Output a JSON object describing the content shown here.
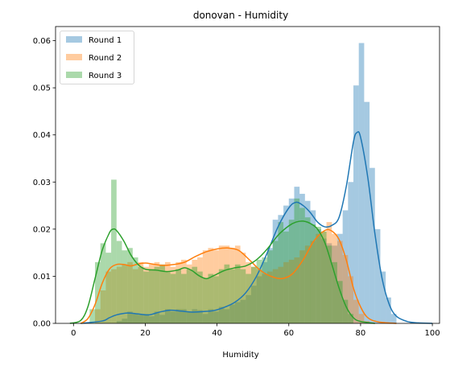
{
  "chart_data": {
    "type": "bar",
    "title": "donovan - Humidity",
    "xlabel": "Humidity",
    "ylabel": "",
    "xlim": [
      -5,
      102
    ],
    "ylim": [
      0,
      0.063
    ],
    "xticks": [
      0,
      20,
      40,
      60,
      80,
      100
    ],
    "yticks": [
      0.0,
      0.01,
      0.02,
      0.03,
      0.04,
      0.05,
      0.06
    ],
    "xtick_labels": [
      "0",
      "20",
      "40",
      "60",
      "80",
      "100"
    ],
    "ytick_labels": [
      "0.00",
      "0.01",
      "0.02",
      "0.03",
      "0.04",
      "0.05",
      "0.06"
    ],
    "legend_position": "upper-left",
    "bin_width": 1.5,
    "series": [
      {
        "name": "Round 1",
        "color": "#1f77b4",
        "bar_opacity": 0.4,
        "histogram": [
          [
            12,
            0.0005
          ],
          [
            13.5,
            0.001
          ],
          [
            15,
            0.0025
          ],
          [
            16.5,
            0.002
          ],
          [
            18,
            0.0018
          ],
          [
            19.5,
            0.002
          ],
          [
            21,
            0.0015
          ],
          [
            22.5,
            0.0025
          ],
          [
            24,
            0.0018
          ],
          [
            25.5,
            0.003
          ],
          [
            27,
            0.0025
          ],
          [
            28.5,
            0.003
          ],
          [
            30,
            0.003
          ],
          [
            31.5,
            0.0025
          ],
          [
            33,
            0.003
          ],
          [
            34.5,
            0.0028
          ],
          [
            36,
            0.002
          ],
          [
            37.5,
            0.003
          ],
          [
            39,
            0.0025
          ],
          [
            40.5,
            0.0035
          ],
          [
            42,
            0.003
          ],
          [
            43.5,
            0.004
          ],
          [
            45,
            0.0045
          ],
          [
            46.5,
            0.005
          ],
          [
            48,
            0.006
          ],
          [
            49.5,
            0.008
          ],
          [
            51,
            0.01
          ],
          [
            52.5,
            0.013
          ],
          [
            54,
            0.016
          ],
          [
            55.5,
            0.022
          ],
          [
            57,
            0.023
          ],
          [
            58.5,
            0.025
          ],
          [
            60,
            0.0265
          ],
          [
            61.5,
            0.029
          ],
          [
            63,
            0.0275
          ],
          [
            64.5,
            0.026
          ],
          [
            66,
            0.024
          ],
          [
            67.5,
            0.02
          ],
          [
            69,
            0.018
          ],
          [
            70.5,
            0.017
          ],
          [
            72,
            0.0165
          ],
          [
            73.5,
            0.019
          ],
          [
            75,
            0.024
          ],
          [
            76.5,
            0.03
          ],
          [
            78,
            0.0505
          ],
          [
            79.5,
            0.0595
          ],
          [
            81,
            0.047
          ],
          [
            82.5,
            0.033
          ],
          [
            84,
            0.02
          ],
          [
            85.5,
            0.011
          ],
          [
            87,
            0.0055
          ],
          [
            88.5,
            0.002
          ]
        ],
        "kde": [
          [
            2,
            0
          ],
          [
            8,
            0.0005
          ],
          [
            10,
            0.0012
          ],
          [
            12,
            0.0018
          ],
          [
            15,
            0.0022
          ],
          [
            18,
            0.002
          ],
          [
            21,
            0.0018
          ],
          [
            24,
            0.0024
          ],
          [
            27,
            0.0028
          ],
          [
            30,
            0.0026
          ],
          [
            33,
            0.0024
          ],
          [
            36,
            0.0025
          ],
          [
            39,
            0.0027
          ],
          [
            42,
            0.0034
          ],
          [
            45,
            0.0045
          ],
          [
            48,
            0.0065
          ],
          [
            51,
            0.01
          ],
          [
            54,
            0.015
          ],
          [
            57,
            0.0205
          ],
          [
            60,
            0.0245
          ],
          [
            62,
            0.0257
          ],
          [
            64,
            0.025
          ],
          [
            66,
            0.0235
          ],
          [
            68,
            0.0215
          ],
          [
            70,
            0.0205
          ],
          [
            72,
            0.0208
          ],
          [
            74,
            0.0225
          ],
          [
            76,
            0.029
          ],
          [
            78,
            0.0385
          ],
          [
            79,
            0.0405
          ],
          [
            80,
            0.0395
          ],
          [
            82,
            0.031
          ],
          [
            84,
            0.019
          ],
          [
            86,
            0.0095
          ],
          [
            88,
            0.004
          ],
          [
            90,
            0.0015
          ],
          [
            93,
            0.0004
          ],
          [
            96,
            0.0001
          ],
          [
            100,
            0
          ]
        ]
      },
      {
        "name": "Round 2",
        "color": "#ff7f0e",
        "bar_opacity": 0.4,
        "histogram": [
          [
            6,
            0.003
          ],
          [
            7.5,
            0.007
          ],
          [
            9,
            0.011
          ],
          [
            10.5,
            0.0115
          ],
          [
            12,
            0.012
          ],
          [
            13.5,
            0.0125
          ],
          [
            15,
            0.013
          ],
          [
            16.5,
            0.0115
          ],
          [
            18,
            0.013
          ],
          [
            19.5,
            0.012
          ],
          [
            21,
            0.0125
          ],
          [
            22.5,
            0.013
          ],
          [
            24,
            0.0125
          ],
          [
            25.5,
            0.013
          ],
          [
            27,
            0.012
          ],
          [
            28.5,
            0.013
          ],
          [
            30,
            0.0135
          ],
          [
            31.5,
            0.0125
          ],
          [
            33,
            0.0135
          ],
          [
            34.5,
            0.014
          ],
          [
            36,
            0.0155
          ],
          [
            37.5,
            0.016
          ],
          [
            39,
            0.0155
          ],
          [
            40.5,
            0.0165
          ],
          [
            42,
            0.0165
          ],
          [
            43.5,
            0.016
          ],
          [
            45,
            0.0165
          ],
          [
            46.5,
            0.015
          ],
          [
            48,
            0.013
          ],
          [
            49.5,
            0.012
          ],
          [
            51,
            0.0115
          ],
          [
            52.5,
            0.0105
          ],
          [
            54,
            0.011
          ],
          [
            55.5,
            0.0115
          ],
          [
            57,
            0.012
          ],
          [
            58.5,
            0.013
          ],
          [
            60,
            0.0135
          ],
          [
            61.5,
            0.014
          ],
          [
            63,
            0.0155
          ],
          [
            64.5,
            0.0165
          ],
          [
            66,
            0.0175
          ],
          [
            67.5,
            0.019
          ],
          [
            69,
            0.0195
          ],
          [
            70.5,
            0.0215
          ],
          [
            72,
            0.019
          ],
          [
            73.5,
            0.0175
          ],
          [
            75,
            0.0145
          ],
          [
            76.5,
            0.01
          ],
          [
            78,
            0.005
          ],
          [
            79.5,
            0.002
          ],
          [
            81,
            0.0005
          ]
        ],
        "kde": [
          [
            2,
            0
          ],
          [
            4,
            0.001
          ],
          [
            6,
            0.004
          ],
          [
            8,
            0.0085
          ],
          [
            10,
            0.0115
          ],
          [
            12,
            0.0125
          ],
          [
            14,
            0.0125
          ],
          [
            16,
            0.0122
          ],
          [
            18,
            0.0126
          ],
          [
            20,
            0.0128
          ],
          [
            22,
            0.0126
          ],
          [
            25,
            0.0123
          ],
          [
            28,
            0.0125
          ],
          [
            31,
            0.013
          ],
          [
            34,
            0.0142
          ],
          [
            37,
            0.0152
          ],
          [
            40,
            0.0158
          ],
          [
            43,
            0.016
          ],
          [
            46,
            0.0155
          ],
          [
            49,
            0.0135
          ],
          [
            52,
            0.0113
          ],
          [
            55,
            0.01
          ],
          [
            58,
            0.0095
          ],
          [
            61,
            0.0105
          ],
          [
            64,
            0.0135
          ],
          [
            67,
            0.0175
          ],
          [
            70,
            0.0197
          ],
          [
            72,
            0.0196
          ],
          [
            74,
            0.0178
          ],
          [
            76,
            0.0135
          ],
          [
            78,
            0.0075
          ],
          [
            80,
            0.0035
          ],
          [
            82,
            0.0012
          ],
          [
            85,
            0.0003
          ],
          [
            90,
            0
          ]
        ]
      },
      {
        "name": "Round 3",
        "color": "#2ca02c",
        "bar_opacity": 0.4,
        "histogram": [
          [
            4.5,
            0.003
          ],
          [
            6,
            0.013
          ],
          [
            7.5,
            0.017
          ],
          [
            9,
            0.015
          ],
          [
            10.5,
            0.0305
          ],
          [
            12,
            0.0175
          ],
          [
            13.5,
            0.0155
          ],
          [
            15,
            0.016
          ],
          [
            16.5,
            0.014
          ],
          [
            18,
            0.012
          ],
          [
            19.5,
            0.011
          ],
          [
            21,
            0.0115
          ],
          [
            22.5,
            0.012
          ],
          [
            24,
            0.0125
          ],
          [
            25.5,
            0.011
          ],
          [
            27,
            0.0105
          ],
          [
            28.5,
            0.0115
          ],
          [
            30,
            0.0105
          ],
          [
            31.5,
            0.0115
          ],
          [
            33,
            0.012
          ],
          [
            34.5,
            0.011
          ],
          [
            36,
            0.0095
          ],
          [
            37.5,
            0.0105
          ],
          [
            39,
            0.01
          ],
          [
            40.5,
            0.0115
          ],
          [
            42,
            0.0125
          ],
          [
            43.5,
            0.0115
          ],
          [
            45,
            0.0125
          ],
          [
            46.5,
            0.0115
          ],
          [
            48,
            0.0105
          ],
          [
            49.5,
            0.012
          ],
          [
            51,
            0.0135
          ],
          [
            52.5,
            0.014
          ],
          [
            54,
            0.0155
          ],
          [
            55.5,
            0.0175
          ],
          [
            57,
            0.0215
          ],
          [
            58.5,
            0.0195
          ],
          [
            60,
            0.022
          ],
          [
            61.5,
            0.0265
          ],
          [
            63,
            0.0245
          ],
          [
            64.5,
            0.0225
          ],
          [
            66,
            0.021
          ],
          [
            67.5,
            0.0205
          ],
          [
            69,
            0.0195
          ],
          [
            70.5,
            0.0165
          ],
          [
            72,
            0.013
          ],
          [
            73.5,
            0.009
          ],
          [
            75,
            0.005
          ],
          [
            76.5,
            0.002
          ]
        ],
        "kde": [
          [
            -1,
            0
          ],
          [
            2,
            0.0006
          ],
          [
            4,
            0.0035
          ],
          [
            6,
            0.0095
          ],
          [
            8,
            0.0155
          ],
          [
            10,
            0.0192
          ],
          [
            11,
            0.02
          ],
          [
            12,
            0.0197
          ],
          [
            14,
            0.0175
          ],
          [
            16,
            0.0145
          ],
          [
            18,
            0.0125
          ],
          [
            20,
            0.0115
          ],
          [
            23,
            0.0113
          ],
          [
            26,
            0.011
          ],
          [
            29,
            0.0113
          ],
          [
            31,
            0.0118
          ],
          [
            33,
            0.0112
          ],
          [
            35,
            0.0101
          ],
          [
            37,
            0.0095
          ],
          [
            39,
            0.0101
          ],
          [
            42,
            0.0112
          ],
          [
            45,
            0.0118
          ],
          [
            48,
            0.0122
          ],
          [
            51,
            0.0135
          ],
          [
            54,
            0.0158
          ],
          [
            57,
            0.0187
          ],
          [
            60,
            0.0207
          ],
          [
            62,
            0.0215
          ],
          [
            64,
            0.0217
          ],
          [
            66,
            0.0212
          ],
          [
            68,
            0.02
          ],
          [
            70,
            0.0172
          ],
          [
            72,
            0.0125
          ],
          [
            74,
            0.0075
          ],
          [
            76,
            0.0035
          ],
          [
            78,
            0.0012
          ],
          [
            80,
            0.0004
          ],
          [
            84,
            0
          ]
        ]
      }
    ]
  }
}
